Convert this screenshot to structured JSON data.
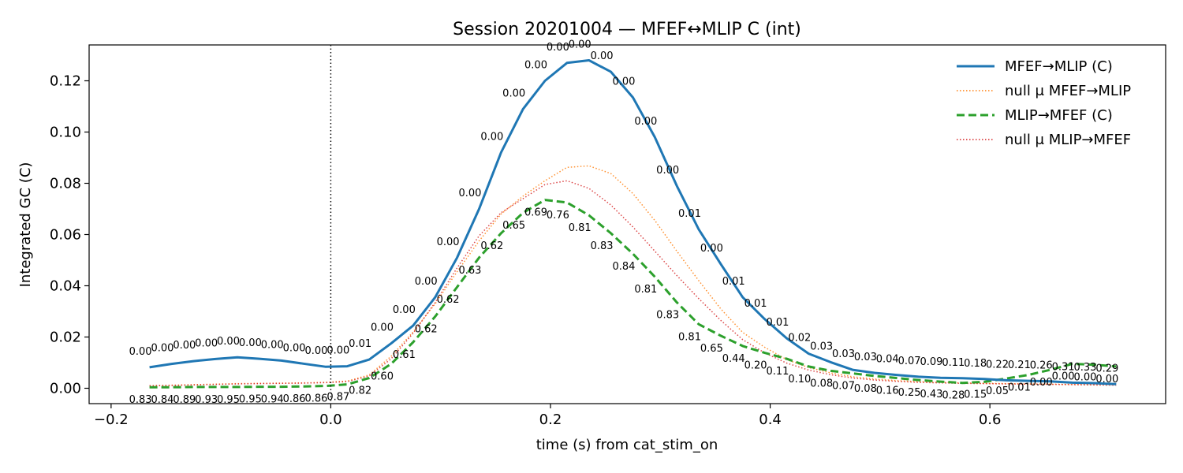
{
  "chart_data": {
    "type": "line",
    "title": "Session 20201004 — MFEF↔MLIP C (int)",
    "xlabel": "time (s) from cat_stim_on",
    "ylabel": "Integrated GC (C)",
    "xlim": [
      -0.22,
      0.76
    ],
    "ylim": [
      -0.006,
      0.134
    ],
    "x_ticks": [
      -0.2,
      0.0,
      0.2,
      0.4,
      0.6
    ],
    "x_tick_labels": [
      "−0.2",
      "0.0",
      "0.2",
      "0.4",
      "0.6"
    ],
    "y_ticks": [
      0.0,
      0.02,
      0.04,
      0.06,
      0.08,
      0.1,
      0.12
    ],
    "y_tick_labels": [
      "0.00",
      "0.02",
      "0.04",
      "0.06",
      "0.08",
      "0.10",
      "0.12"
    ],
    "grid": false,
    "legend_position": "top-right",
    "vline_x": 0.0,
    "x": [
      -0.165,
      -0.145,
      -0.125,
      -0.105,
      -0.085,
      -0.065,
      -0.045,
      -0.025,
      -0.005,
      0.015,
      0.035,
      0.055,
      0.075,
      0.095,
      0.115,
      0.135,
      0.155,
      0.175,
      0.195,
      0.215,
      0.235,
      0.255,
      0.275,
      0.295,
      0.315,
      0.335,
      0.355,
      0.375,
      0.395,
      0.415,
      0.435,
      0.455,
      0.475,
      0.495,
      0.515,
      0.535,
      0.555,
      0.575,
      0.595,
      0.615,
      0.635,
      0.655,
      0.675,
      0.695,
      0.715
    ],
    "series": [
      {
        "name": "MFEF→MLIP (C)",
        "color": "#1f77b4",
        "style": "solid",
        "values": [
          0.0082,
          0.0095,
          0.0106,
          0.0114,
          0.0121,
          0.0115,
          0.0108,
          0.0096,
          0.0084,
          0.0086,
          0.0112,
          0.0175,
          0.0245,
          0.0355,
          0.051,
          0.07,
          0.092,
          0.109,
          0.12,
          0.127,
          0.128,
          0.1235,
          0.1135,
          0.098,
          0.079,
          0.062,
          0.0485,
          0.0355,
          0.027,
          0.0195,
          0.0135,
          0.0102,
          0.0072,
          0.006,
          0.0052,
          0.0045,
          0.0041,
          0.0039,
          0.0036,
          0.0031,
          0.0029,
          0.0027,
          0.0022,
          0.002,
          0.0016
        ],
        "pvalue_labels": [
          "0.00",
          "0.00",
          "0.00",
          "0.00",
          "0.00",
          "0.00",
          "0.00",
          "0.00",
          "0.00",
          "0.00",
          "0.01",
          "0.00",
          "0.00",
          "0.00",
          "0.00",
          "0.00",
          "0.00",
          "0.00",
          "0.00",
          "0.00",
          "0.00",
          "0.00",
          "0.00",
          "0.00",
          "0.00",
          "0.01",
          "0.00",
          "0.01",
          "0.01",
          "0.01",
          "0.02",
          "0.03",
          "0.03",
          "0.03",
          "0.04",
          "0.07",
          "0.09",
          "0.11",
          "0.18",
          "0.22",
          "0.21",
          "0.26",
          "0.31",
          "0.33",
          "0.29"
        ]
      },
      {
        "name": "null μ MFEF→MLIP",
        "color": "#ff7f0e",
        "style": "dotted",
        "values": [
          0.001,
          0.0012,
          0.0014,
          0.0016,
          0.0018,
          0.0019,
          0.002,
          0.0021,
          0.0023,
          0.0028,
          0.0052,
          0.0125,
          0.022,
          0.033,
          0.0455,
          0.0575,
          0.068,
          0.075,
          0.081,
          0.0862,
          0.0868,
          0.0838,
          0.076,
          0.0655,
          0.0535,
          0.042,
          0.031,
          0.0218,
          0.016,
          0.0112,
          0.0081,
          0.006,
          0.0045,
          0.0036,
          0.003,
          0.0026,
          0.0023,
          0.0021,
          0.0019,
          0.0018,
          0.0017,
          0.0016,
          0.0015,
          0.0014,
          0.0013
        ]
      },
      {
        "name": "MLIP→MFEF (C)",
        "color": "#2ca02c",
        "style": "dashed",
        "values": [
          0.0004,
          0.0004,
          0.0005,
          0.0005,
          0.0005,
          0.0006,
          0.0006,
          0.0007,
          0.0009,
          0.0015,
          0.004,
          0.0095,
          0.018,
          0.028,
          0.0395,
          0.051,
          0.0605,
          0.0685,
          0.0735,
          0.0725,
          0.0675,
          0.0605,
          0.0525,
          0.0435,
          0.0335,
          0.025,
          0.0205,
          0.0165,
          0.0138,
          0.0115,
          0.0085,
          0.0068,
          0.0058,
          0.0048,
          0.004,
          0.0032,
          0.0026,
          0.0021,
          0.0025,
          0.0038,
          0.0052,
          0.0072,
          0.0095,
          0.0092,
          0.0085
        ],
        "pvalue_labels": [
          "0.83",
          "0.84",
          "0.89",
          "0.93",
          "0.95",
          "0.95",
          "0.94",
          "0.86",
          "0.86",
          "0.87",
          "0.82",
          "0.60",
          "0.61",
          "0.62",
          "0.62",
          "0.63",
          "0.62",
          "0.65",
          "0.69",
          "0.76",
          "0.81",
          "0.83",
          "0.84",
          "0.81",
          "0.83",
          "0.81",
          "0.65",
          "0.44",
          "0.20",
          "0.11",
          "0.10",
          "0.08",
          "0.07",
          "0.08",
          "0.16",
          "0.25",
          "0.43",
          "0.28",
          "0.15",
          "0.05",
          "0.01",
          "0.00",
          "0.00",
          "0.00",
          "0.00"
        ]
      },
      {
        "name": "null μ MLIP→MFEF",
        "color": "#d62728",
        "style": "dotted",
        "values": [
          0.001,
          0.0011,
          0.0013,
          0.0015,
          0.0017,
          0.0018,
          0.0019,
          0.002,
          0.0022,
          0.0026,
          0.0048,
          0.0115,
          0.0215,
          0.0335,
          0.047,
          0.0595,
          0.0685,
          0.074,
          0.0795,
          0.081,
          0.078,
          0.0715,
          0.063,
          0.0535,
          0.044,
          0.035,
          0.0265,
          0.019,
          0.0138,
          0.0098,
          0.0071,
          0.0053,
          0.004,
          0.0032,
          0.0027,
          0.0023,
          0.0021,
          0.0019,
          0.0018,
          0.0017,
          0.0016,
          0.0015,
          0.0014,
          0.0013,
          0.0012
        ]
      }
    ]
  }
}
